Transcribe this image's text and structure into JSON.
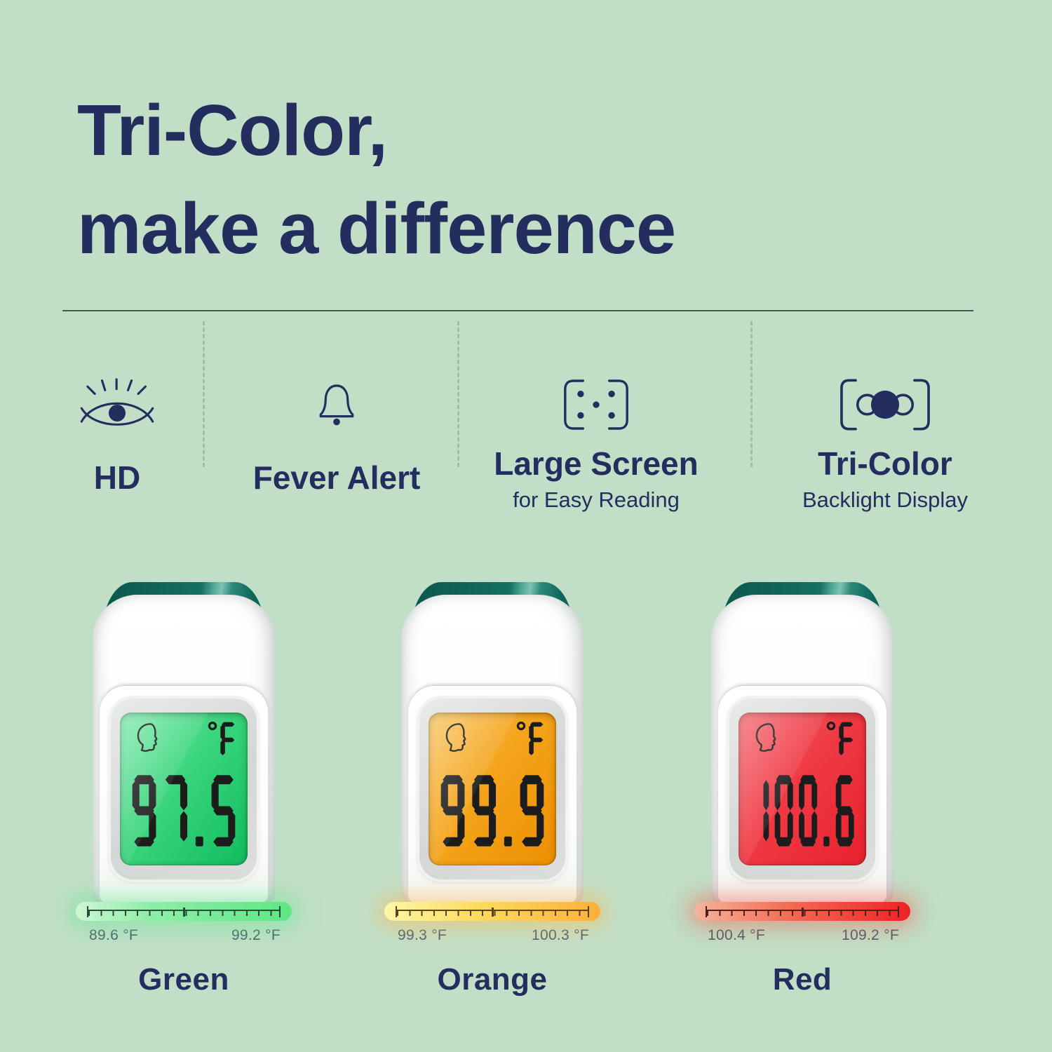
{
  "colors": {
    "background": "#c1dfc7",
    "navy": "#232e5f",
    "divider_line": "#3d5b4f",
    "range_label_text": "#4d5c6b",
    "cap_teal": "#11685c",
    "cap_highlight": "#7cc3b2",
    "body_white": "#ffffff",
    "bezel_silver": "#d5d9d7",
    "lcd_digit_black": "#1c1c1c"
  },
  "title": {
    "line1": "Tri-Color,",
    "line2": "make a difference"
  },
  "features": [
    {
      "icon": "eye-icon",
      "label": "HD",
      "sublabel": ""
    },
    {
      "icon": "bell-icon",
      "label": "Fever Alert",
      "sublabel": ""
    },
    {
      "icon": "large-screen-icon",
      "label": "Large Screen",
      "sublabel": "for Easy Reading"
    },
    {
      "icon": "tri-color-backlight-icon",
      "label": "Tri-Color",
      "sublabel": "Backlight Display"
    }
  ],
  "thermometers": [
    {
      "name": "Green",
      "reading": "97.5",
      "unit": "°F",
      "range_min": "89.6 °F",
      "range_max": "99.2 °F",
      "lcd_gradient": "linear-gradient(128deg,#7fe9ad 0%,#3bd57d 45%,#10bd5e 100%)",
      "bar_gradient": "linear-gradient(90deg,#cff5d4 0%,#8deea6 35%,#5fe684 100%)",
      "bar_glow": "0 0 30px 10px rgba(110,232,150,0.55)",
      "tick_color": "#2c4a3a"
    },
    {
      "name": "Orange",
      "reading": "99.9",
      "unit": "°F",
      "range_min": "99.3 °F",
      "range_max": "100.3 °F",
      "lcd_gradient": "linear-gradient(128deg,#f9c35c 0%,#f4a41c 45%,#ec8f00 100%)",
      "bar_gradient": "linear-gradient(90deg,#fdf6a6 0%,#fdd95e 45%,#fbaf3c 100%)",
      "bar_glow": "0 0 30px 10px rgba(250,190,90,0.55)",
      "tick_color": "#5a4420"
    },
    {
      "name": "Red",
      "reading": "100.6",
      "unit": "°F",
      "range_min": "100.4 °F",
      "range_max": "109.2 °F",
      "lcd_gradient": "linear-gradient(128deg,#f4646c 0%,#ef3a44 45%,#e9212e 100%)",
      "bar_gradient": "linear-gradient(90deg,#f5b49c 0%,#f26a50 45%,#ee2226 100%)",
      "bar_glow": "0 0 30px 10px rgba(240,100,80,0.5)",
      "tick_color": "#4e1f1c"
    }
  ]
}
